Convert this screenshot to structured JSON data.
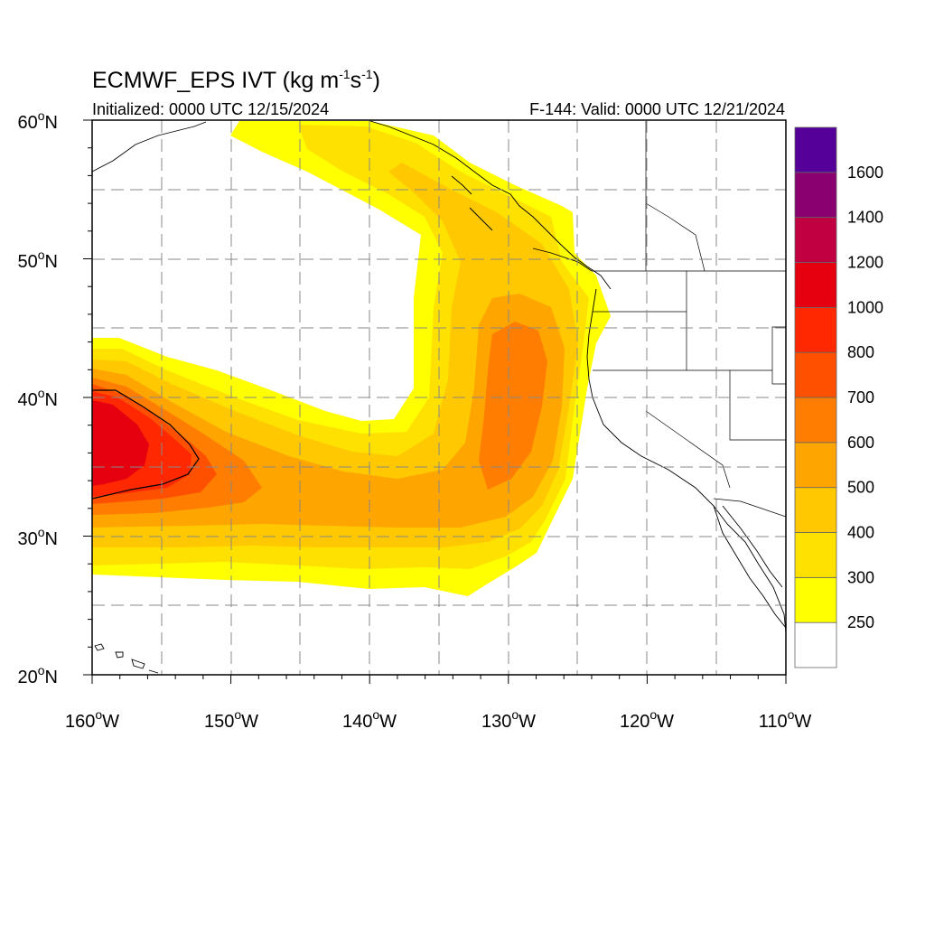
{
  "title": {
    "main": "ECMWF_EPS IVT (kg m",
    "sup1": "-1",
    "mid": "s",
    "sup2": "-1",
    "close": ")"
  },
  "subtitle_left": "Initialized: 0000 UTC 12/15/2024",
  "subtitle_right": "F-144: Valid: 0000 UTC 12/21/2024",
  "lat_labels": [
    {
      "deg": "60",
      "sym": "o",
      "hem": "N"
    },
    {
      "deg": "50",
      "sym": "o",
      "hem": "N"
    },
    {
      "deg": "40",
      "sym": "o",
      "hem": "N"
    },
    {
      "deg": "30",
      "sym": "o",
      "hem": "N"
    },
    {
      "deg": "20",
      "sym": "o",
      "hem": "N"
    }
  ],
  "lon_labels": [
    {
      "deg": "160",
      "sym": "o",
      "hem": "W"
    },
    {
      "deg": "150",
      "sym": "o",
      "hem": "W"
    },
    {
      "deg": "140",
      "sym": "o",
      "hem": "W"
    },
    {
      "deg": "130",
      "sym": "o",
      "hem": "W"
    },
    {
      "deg": "120",
      "sym": "o",
      "hem": "W"
    },
    {
      "deg": "110",
      "sym": "o",
      "hem": "W"
    }
  ],
  "colorbar": {
    "levels": [
      "250",
      "300",
      "400",
      "500",
      "600",
      "700",
      "800",
      "1000",
      "1200",
      "1400",
      "1600"
    ],
    "colors": [
      "#ffffff",
      "#ffff00",
      "#ffe100",
      "#ffc800",
      "#ffa500",
      "#ff7d00",
      "#ff5000",
      "#ff2800",
      "#e6000f",
      "#c00040",
      "#8a0070",
      "#550099"
    ]
  },
  "map": {
    "lat_range": [
      20,
      60
    ],
    "lon_range": [
      -160,
      -110
    ],
    "grid": "dashed-10-degree",
    "contour_level": "1000"
  }
}
